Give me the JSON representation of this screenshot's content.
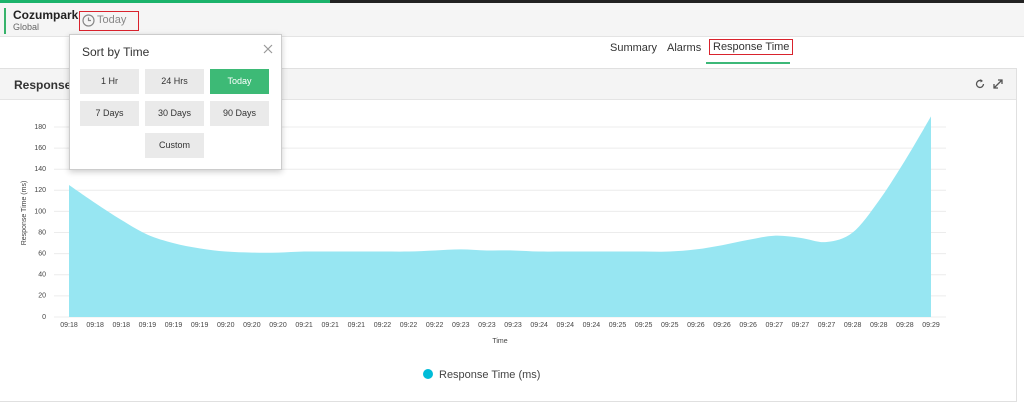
{
  "header": {
    "title": "Cozumpark",
    "subtitle": "Global",
    "range": "Today"
  },
  "tabs": [
    "Summary",
    "Alarms",
    "Response Time"
  ],
  "popup": {
    "title": "Sort by Time",
    "options": [
      "1 Hr",
      "24 Hrs",
      "Today",
      "7 Days",
      "30 Days",
      "90 Days",
      "Custom"
    ]
  },
  "chart_data": {
    "type": "area",
    "title": "Response Time",
    "x_label": "Time",
    "y_label": "Response Time (ms)",
    "categories": [
      "09:18",
      "09:18",
      "09:18",
      "09:19",
      "09:19",
      "09:19",
      "09:20",
      "09:20",
      "09:20",
      "09:21",
      "09:21",
      "09:21",
      "09:22",
      "09:22",
      "09:22",
      "09:23",
      "09:23",
      "09:23",
      "09:24",
      "09:24",
      "09:24",
      "09:25",
      "09:25",
      "09:25",
      "09:26",
      "09:26",
      "09:26",
      "09:27",
      "09:27",
      "09:27",
      "09:28",
      "09:28",
      "09:28",
      "09:29"
    ],
    "series": [
      {
        "name": "Response Time (ms)",
        "color": "#97e6f2",
        "legend_color": "#00bcd8",
        "values": [
          125,
          108,
          92,
          78,
          70,
          65,
          62,
          61,
          61,
          62,
          62,
          62,
          62,
          62,
          63,
          64,
          63,
          63,
          62,
          62,
          62,
          62,
          62,
          62,
          64,
          68,
          73,
          77,
          75,
          71,
          80,
          110,
          148,
          190
        ]
      }
    ],
    "ylim": [
      0,
      190
    ],
    "yticks": [
      0,
      20,
      40,
      60,
      80,
      100,
      120,
      140,
      160,
      180
    ],
    "grid": true
  }
}
